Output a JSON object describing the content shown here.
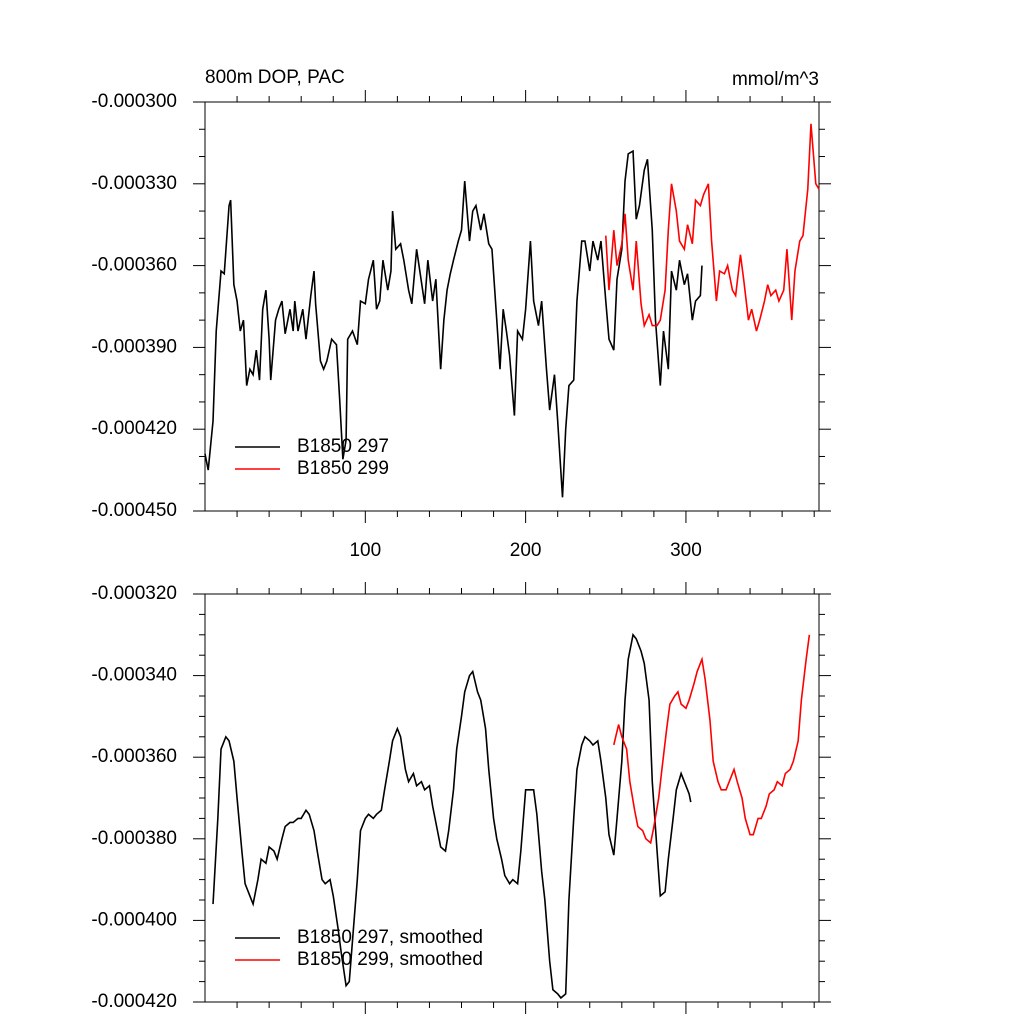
{
  "chart_data": [
    {
      "type": "line",
      "title": "800m DOP, PAC",
      "units": "mmol/m^3",
      "xlim": [
        0,
        383
      ],
      "xticks": [
        100,
        200,
        300
      ],
      "xtick_labels": true,
      "xminorticks": [
        20,
        40,
        60,
        80,
        120,
        140,
        160,
        180,
        220,
        240,
        260,
        280,
        320,
        340,
        360,
        380
      ],
      "ylim": [
        -0.00045,
        -0.0003
      ],
      "yticks": [
        {
          "value": -0.00045,
          "label": "-0.000450"
        },
        {
          "value": -0.00042,
          "label": "-0.000420"
        },
        {
          "value": -0.00039,
          "label": "-0.000390"
        },
        {
          "value": -0.00036,
          "label": "-0.000360"
        },
        {
          "value": -0.00033,
          "label": "-0.000330"
        },
        {
          "value": -0.0003,
          "label": "-0.000300"
        }
      ],
      "yminorticks": [
        -0.00044,
        -0.00043,
        -0.00041,
        -0.0004,
        -0.00038,
        -0.00037,
        -0.00035,
        -0.00034,
        -0.00032,
        -0.00031
      ],
      "legend": "lower left",
      "series": [
        {
          "name": "B1850 297",
          "color": "#000000",
          "x": [
            0,
            2,
            5,
            7,
            10,
            12,
            15,
            16,
            18,
            20,
            22,
            24,
            26,
            28,
            30,
            32,
            34,
            36,
            38,
            40,
            41,
            44,
            46,
            48,
            50,
            53,
            55,
            56,
            58,
            61,
            63,
            66,
            68,
            69,
            72,
            74,
            76,
            79,
            82,
            84,
            86,
            88,
            89,
            92,
            95,
            97,
            100,
            102,
            105,
            107,
            109,
            111,
            114,
            116,
            117,
            119,
            122,
            124,
            127,
            129,
            132,
            134,
            137,
            139,
            142,
            144,
            147,
            149,
            151,
            153,
            155,
            158,
            160,
            162,
            165,
            167,
            169,
            172,
            174,
            177,
            179,
            182,
            184,
            186,
            188,
            190,
            193,
            195,
            198,
            200,
            203,
            205,
            208,
            210,
            213,
            215,
            218,
            220,
            223,
            225,
            227,
            230,
            232,
            235,
            237,
            240,
            242,
            245,
            247,
            250,
            252,
            255,
            257,
            260,
            262,
            264,
            267,
            269,
            271,
            274,
            276,
            279,
            281,
            284,
            286,
            289,
            291,
            294,
            296,
            299,
            301,
            304,
            306,
            309,
            310
          ],
          "values": [
            -0.000429,
            -0.000435,
            -0.000417,
            -0.000384,
            -0.000362,
            -0.000363,
            -0.000338,
            -0.000336,
            -0.000367,
            -0.000373,
            -0.000384,
            -0.00038,
            -0.000404,
            -0.000398,
            -0.0004,
            -0.000391,
            -0.000402,
            -0.000376,
            -0.000369,
            -0.000387,
            -0.000402,
            -0.00038,
            -0.000376,
            -0.000373,
            -0.000385,
            -0.000376,
            -0.000384,
            -0.000373,
            -0.000384,
            -0.000376,
            -0.000387,
            -0.000371,
            -0.000362,
            -0.000374,
            -0.000395,
            -0.000398,
            -0.000395,
            -0.000387,
            -0.000389,
            -0.000409,
            -0.000431,
            -0.000424,
            -0.000387,
            -0.000384,
            -0.000389,
            -0.000373,
            -0.000374,
            -0.000365,
            -0.000358,
            -0.000376,
            -0.000373,
            -0.000358,
            -0.000369,
            -0.000362,
            -0.00034,
            -0.000354,
            -0.000352,
            -0.000358,
            -0.000369,
            -0.000374,
            -0.000354,
            -0.000362,
            -0.000374,
            -0.000358,
            -0.000373,
            -0.000365,
            -0.000398,
            -0.00038,
            -0.000369,
            -0.000363,
            -0.000358,
            -0.000351,
            -0.000347,
            -0.000329,
            -0.000351,
            -0.00034,
            -0.000338,
            -0.000347,
            -0.000341,
            -0.000352,
            -0.000354,
            -0.00038,
            -0.000398,
            -0.000376,
            -0.000384,
            -0.000393,
            -0.000415,
            -0.000384,
            -0.000387,
            -0.000376,
            -0.000351,
            -0.000373,
            -0.000382,
            -0.000373,
            -0.000398,
            -0.000413,
            -0.0004,
            -0.000417,
            -0.000445,
            -0.00042,
            -0.000404,
            -0.000402,
            -0.000373,
            -0.000351,
            -0.000351,
            -0.000362,
            -0.000351,
            -0.000358,
            -0.000351,
            -0.000373,
            -0.000387,
            -0.000391,
            -0.000365,
            -0.000354,
            -0.000329,
            -0.000319,
            -0.000318,
            -0.000343,
            -0.000338,
            -0.000325,
            -0.000321,
            -0.000347,
            -0.00038,
            -0.000404,
            -0.000384,
            -0.000398,
            -0.000362,
            -0.000369,
            -0.000358,
            -0.000367,
            -0.000363,
            -0.00038,
            -0.000373,
            -0.000371,
            -0.00036
          ]
        },
        {
          "name": "B1850 299",
          "color": "#ff0000",
          "x": [
            250,
            252,
            255,
            257,
            260,
            262,
            264,
            267,
            269,
            272,
            274,
            277,
            279,
            282,
            284,
            287,
            289,
            291,
            294,
            296,
            299,
            301,
            304,
            306,
            309,
            311,
            314,
            316,
            319,
            321,
            324,
            326,
            329,
            331,
            334,
            336,
            339,
            341,
            344,
            346,
            349,
            351,
            353,
            356,
            358,
            361,
            363,
            366,
            368,
            371,
            373,
            376,
            378,
            381,
            383
          ],
          "values": [
            -0.000349,
            -0.000369,
            -0.000347,
            -0.00036,
            -0.000352,
            -0.000341,
            -0.000358,
            -0.000369,
            -0.000351,
            -0.000374,
            -0.000382,
            -0.000378,
            -0.000382,
            -0.000382,
            -0.00038,
            -0.000369,
            -0.000347,
            -0.00033,
            -0.00034,
            -0.000351,
            -0.000354,
            -0.000345,
            -0.000352,
            -0.000336,
            -0.000338,
            -0.000334,
            -0.00033,
            -0.000351,
            -0.000373,
            -0.000362,
            -0.000363,
            -0.00036,
            -0.000369,
            -0.000371,
            -0.000356,
            -0.000365,
            -0.00038,
            -0.000376,
            -0.000384,
            -0.00038,
            -0.000373,
            -0.000367,
            -0.000371,
            -0.000369,
            -0.000373,
            -0.000369,
            -0.000354,
            -0.00038,
            -0.000362,
            -0.000351,
            -0.000349,
            -0.000332,
            -0.000308,
            -0.00033,
            -0.000332
          ]
        }
      ]
    },
    {
      "type": "line",
      "xlim": [
        0,
        383
      ],
      "xticks": [
        100,
        200,
        300
      ],
      "xtick_labels": false,
      "xminorticks": [
        20,
        40,
        60,
        80,
        120,
        140,
        160,
        180,
        220,
        240,
        260,
        280,
        320,
        340,
        360,
        380
      ],
      "ylim": [
        -0.00042,
        -0.00032
      ],
      "yticks": [
        {
          "value": -0.00042,
          "label": "-0.000420"
        },
        {
          "value": -0.0004,
          "label": "-0.000400"
        },
        {
          "value": -0.00038,
          "label": "-0.000380"
        },
        {
          "value": -0.00036,
          "label": "-0.000360"
        },
        {
          "value": -0.00034,
          "label": "-0.000340"
        },
        {
          "value": -0.00032,
          "label": "-0.000320"
        }
      ],
      "yminorticks": [
        -0.000415,
        -0.00041,
        -0.000405,
        -0.000395,
        -0.00039,
        -0.000385,
        -0.000375,
        -0.00037,
        -0.000365,
        -0.000355,
        -0.00035,
        -0.000345,
        -0.000335,
        -0.00033,
        -0.000325
      ],
      "legend": "lower left",
      "series": [
        {
          "name": "B1850 297, smoothed",
          "color": "#000000",
          "x": [
            5,
            8,
            10,
            13,
            15,
            18,
            20,
            23,
            25,
            28,
            30,
            33,
            35,
            38,
            40,
            43,
            45,
            48,
            50,
            53,
            55,
            58,
            60,
            63,
            65,
            68,
            70,
            73,
            75,
            78,
            80,
            83,
            85,
            88,
            90,
            92,
            95,
            97,
            100,
            102,
            105,
            107,
            110,
            112,
            115,
            117,
            120,
            122,
            125,
            127,
            130,
            132,
            135,
            137,
            140,
            142,
            145,
            147,
            150,
            152,
            155,
            157,
            160,
            162,
            165,
            167,
            170,
            172,
            175,
            177,
            180,
            182,
            185,
            187,
            190,
            192,
            195,
            197,
            200,
            202,
            205,
            207,
            210,
            212,
            215,
            217,
            220,
            222,
            225,
            227,
            230,
            232,
            235,
            237,
            240,
            242,
            245,
            247,
            250,
            252,
            255,
            257,
            260,
            262,
            264,
            267,
            269,
            272,
            274,
            277,
            279,
            282,
            284,
            287,
            289,
            292,
            294,
            297,
            299,
            302,
            303
          ],
          "values": [
            -0.000396,
            -0.000375,
            -0.000358,
            -0.000355,
            -0.000356,
            -0.000361,
            -0.00037,
            -0.000383,
            -0.000391,
            -0.000394,
            -0.000396,
            -0.00039,
            -0.000385,
            -0.000386,
            -0.000382,
            -0.000383,
            -0.000385,
            -0.00038,
            -0.000377,
            -0.000376,
            -0.000376,
            -0.000375,
            -0.000375,
            -0.000373,
            -0.000374,
            -0.000378,
            -0.000383,
            -0.00039,
            -0.000391,
            -0.00039,
            -0.000394,
            -0.000402,
            -0.000408,
            -0.000416,
            -0.000415,
            -0.000405,
            -0.00039,
            -0.000378,
            -0.000375,
            -0.000374,
            -0.000375,
            -0.000374,
            -0.000373,
            -0.000368,
            -0.000361,
            -0.000356,
            -0.000353,
            -0.000355,
            -0.000363,
            -0.000366,
            -0.000364,
            -0.000367,
            -0.000366,
            -0.000368,
            -0.000367,
            -0.000372,
            -0.000378,
            -0.000382,
            -0.000383,
            -0.000378,
            -0.000368,
            -0.000358,
            -0.00035,
            -0.000344,
            -0.00034,
            -0.000339,
            -0.000344,
            -0.000346,
            -0.000353,
            -0.000363,
            -0.000375,
            -0.00038,
            -0.000385,
            -0.000389,
            -0.000391,
            -0.00039,
            -0.000391,
            -0.000383,
            -0.000368,
            -0.000368,
            -0.000368,
            -0.000374,
            -0.000388,
            -0.000395,
            -0.00041,
            -0.000417,
            -0.000418,
            -0.000419,
            -0.000418,
            -0.000395,
            -0.000375,
            -0.000363,
            -0.000357,
            -0.000355,
            -0.000356,
            -0.000357,
            -0.000356,
            -0.000361,
            -0.00037,
            -0.000379,
            -0.000384,
            -0.000375,
            -0.000361,
            -0.000346,
            -0.000336,
            -0.00033,
            -0.000331,
            -0.000334,
            -0.000337,
            -0.000346,
            -0.000366,
            -0.000383,
            -0.000394,
            -0.000393,
            -0.000385,
            -0.000375,
            -0.000368,
            -0.000364,
            -0.000366,
            -0.000369,
            -0.000371
          ]
        },
        {
          "name": "B1850 299, smoothed",
          "color": "#ff0000",
          "x": [
            255,
            258,
            260,
            263,
            265,
            268,
            270,
            273,
            275,
            278,
            280,
            283,
            285,
            288,
            290,
            293,
            295,
            297,
            300,
            302,
            305,
            307,
            310,
            312,
            315,
            317,
            320,
            322,
            325,
            327,
            330,
            332,
            335,
            337,
            340,
            342,
            345,
            347,
            350,
            352,
            355,
            357,
            360,
            362,
            365,
            367,
            370,
            372,
            375,
            377
          ],
          "values": [
            -0.000357,
            -0.000352,
            -0.000355,
            -0.000358,
            -0.000366,
            -0.000373,
            -0.000377,
            -0.000378,
            -0.00038,
            -0.000381,
            -0.000377,
            -0.00037,
            -0.000363,
            -0.000353,
            -0.000347,
            -0.000345,
            -0.000344,
            -0.000347,
            -0.000348,
            -0.000346,
            -0.000342,
            -0.000339,
            -0.000336,
            -0.000341,
            -0.000351,
            -0.000361,
            -0.000366,
            -0.000368,
            -0.000368,
            -0.000366,
            -0.000363,
            -0.000366,
            -0.00037,
            -0.000375,
            -0.000379,
            -0.000379,
            -0.000375,
            -0.000375,
            -0.000372,
            -0.000369,
            -0.000368,
            -0.000366,
            -0.000367,
            -0.000364,
            -0.000363,
            -0.000361,
            -0.000356,
            -0.000346,
            -0.000336,
            -0.00033
          ]
        }
      ]
    }
  ]
}
